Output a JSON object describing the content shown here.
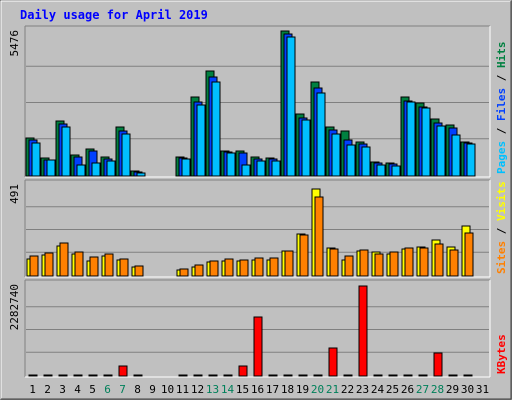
{
  "chart_data": {
    "type": "bar",
    "title": "Daily usage for April 2019",
    "categories": [
      "1",
      "2",
      "3",
      "4",
      "5",
      "6",
      "7",
      "8",
      "9",
      "10",
      "11",
      "12",
      "13",
      "14",
      "15",
      "16",
      "17",
      "18",
      "19",
      "20",
      "21",
      "22",
      "23",
      "24",
      "25",
      "26",
      "27",
      "28",
      "29",
      "30",
      "31"
    ],
    "weekend_days": [
      "6",
      "7",
      "13",
      "14",
      "20",
      "21",
      "27",
      "28"
    ],
    "panels": [
      {
        "id": "hits-files-pages",
        "ymax_label": "5476",
        "ymax": 5476,
        "series": [
          {
            "name": "Hits",
            "color": "#008040",
            "values": [
              1420,
              680,
              2080,
              780,
              1010,
              700,
              1840,
              180,
              0,
              0,
              730,
              2980,
              3980,
              960,
              960,
              720,
              690,
              5460,
              2330,
              3560,
              1850,
              1700,
              1280,
              530,
              480,
              3000,
              2750,
              2150,
              1910,
              1290
            ]
          },
          {
            "name": "Files",
            "color": "#0040ff",
            "values": [
              1350,
              620,
              1950,
              700,
              950,
              640,
              1700,
              160,
              0,
              0,
              680,
              2800,
              3750,
              900,
              880,
              660,
              640,
              5350,
              2200,
              3330,
              1730,
              1350,
              1200,
              480,
              440,
              2850,
              2600,
              2000,
              1800,
              1240
            ]
          },
          {
            "name": "Pages",
            "color": "#00c0ff",
            "values": [
              1260,
              600,
              1850,
              420,
              480,
              560,
              1600,
              130,
              0,
              0,
              660,
              2700,
              3550,
              860,
              400,
              560,
              560,
              5250,
              2130,
              3130,
              1600,
              1170,
              1100,
              420,
              380,
              2800,
              2550,
              1900,
              1560,
              1200
            ]
          }
        ],
        "label_parts": [
          {
            "text": "Pages",
            "color": "#00c0ff"
          },
          {
            "text": " / ",
            "color": "#000000"
          },
          {
            "text": "Files",
            "color": "#0040ff"
          },
          {
            "text": " / ",
            "color": "#000000"
          },
          {
            "text": "Hits",
            "color": "#008040"
          }
        ]
      },
      {
        "id": "visits-sites",
        "ymax_label": "491",
        "ymax": 491,
        "series": [
          {
            "name": "Visits",
            "color": "#ffff00",
            "values": [
              91,
              112,
              161,
              118,
              83,
              108,
              88,
              47,
              0,
              0,
              33,
              49,
              76,
              82,
              80,
              85,
              88,
              137,
              227,
              470,
              153,
              87,
              134,
              127,
              120,
              144,
              155,
              193,
              154,
              270
            ]
          },
          {
            "name": "Sites",
            "color": "#ff8000",
            "values": [
              107,
              125,
              178,
              131,
              100,
              120,
              90,
              53,
              0,
              0,
              40,
              57,
              82,
              90,
              87,
              95,
              95,
              137,
              219,
              426,
              148,
              106,
              140,
              121,
              131,
              149,
              153,
              173,
              140,
              232
            ]
          }
        ],
        "label_parts": [
          {
            "text": "Sites",
            "color": "#ff8000"
          },
          {
            "text": " / ",
            "color": "#000000"
          },
          {
            "text": "Visits",
            "color": "#ffff00"
          }
        ]
      },
      {
        "id": "kbytes",
        "ymax_label": "2282740",
        "ymax": 2282740,
        "series": [
          {
            "name": "KBytes",
            "color": "#ff0000",
            "values": [
              14000,
              14000,
              14000,
              14000,
              35000,
              14000,
              245000,
              14000,
              0,
              0,
              14000,
              14000,
              14000,
              14000,
              250000,
              1470000,
              35000,
              14000,
              14000,
              14000,
              695000,
              14000,
              2270000,
              14000,
              14000,
              14000,
              14000,
              580000,
              14000,
              14000
            ]
          }
        ],
        "label_parts": [
          {
            "text": "KBytes",
            "color": "#ff0000"
          }
        ]
      }
    ],
    "grid": true
  }
}
